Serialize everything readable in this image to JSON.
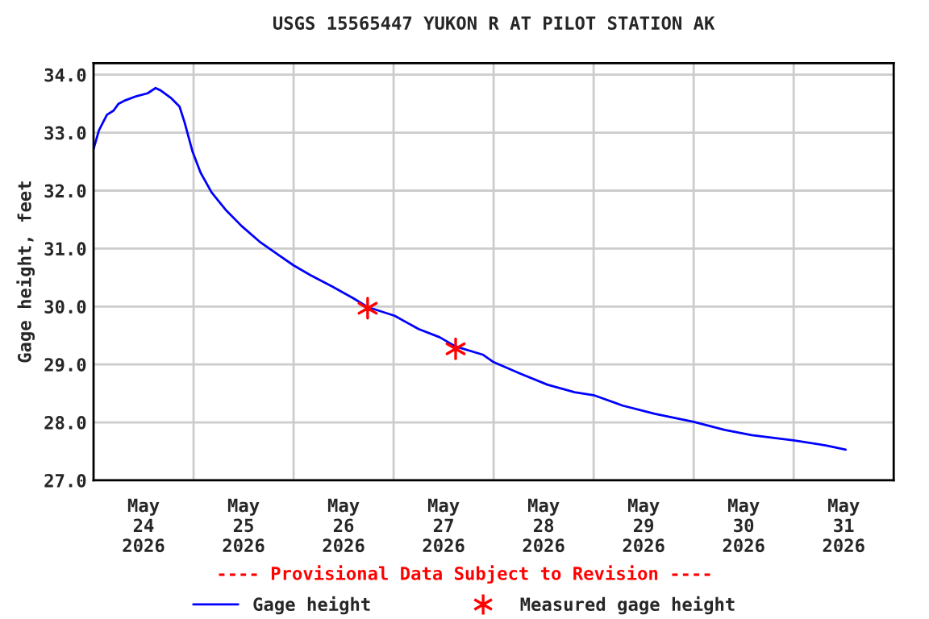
{
  "chart_data": {
    "type": "line",
    "title": "USGS 15565447 YUKON R AT PILOT STATION AK",
    "ylabel": "Gage height, feet",
    "annotations": [
      "---- Provisional Data Subject to Revision ----"
    ],
    "xlim": [
      "2026-05-24",
      "2026-06-01"
    ],
    "xticks": [
      {
        "value": "2026-05-24T12:00",
        "label": "May\n24\n2026"
      },
      {
        "value": "2026-05-25",
        "label": null
      },
      {
        "value": "2026-05-25T12:00",
        "label": "May\n25\n2026"
      },
      {
        "value": "2026-05-26",
        "label": null
      },
      {
        "value": "2026-05-26T12:00",
        "label": "May\n26\n2026"
      },
      {
        "value": "2026-05-27",
        "label": null
      },
      {
        "value": "2026-05-27T12:00",
        "label": "May\n27\n2026"
      },
      {
        "value": "2026-05-28",
        "label": null
      },
      {
        "value": "2026-05-28T12:00",
        "label": "May\n28\n2026"
      },
      {
        "value": "2026-05-29",
        "label": null
      },
      {
        "value": "2026-05-29T12:00",
        "label": "May\n29\n2026"
      },
      {
        "value": "2026-05-30",
        "label": null
      },
      {
        "value": "2026-05-30T12:00",
        "label": "May\n30\n2026"
      },
      {
        "value": "2026-05-31",
        "label": null
      },
      {
        "value": "2026-05-31T12:00",
        "label": "May\n31\n2026"
      }
    ],
    "ylim": [
      27,
      34.2
    ],
    "yticks": [
      {
        "value": 27,
        "label": "27.0"
      },
      {
        "value": 28,
        "label": "28.0"
      },
      {
        "value": 29,
        "label": "29.0"
      },
      {
        "value": 30,
        "label": "30.0"
      },
      {
        "value": 31,
        "label": "31.0"
      },
      {
        "value": 32,
        "label": "32.0"
      },
      {
        "value": 33,
        "label": "33.0"
      },
      {
        "value": 34,
        "label": "34.0"
      }
    ],
    "grid": true,
    "legend": "bottom",
    "series": [
      {
        "name": "Gage height",
        "color": "#0000ff",
        "marker": "none",
        "line_style": "solid",
        "x": [
          "2026-05-24T00:00",
          "2026-05-24T01:18",
          "2026-05-24T03:13",
          "2026-05-24T04:48",
          "2026-05-24T06:00",
          "2026-05-24T07:41",
          "2026-05-24T10:19",
          "2026-05-24T12:58",
          "2026-05-24T14:53",
          "2026-05-24T16:05",
          "2026-05-24T18:43",
          "2026-05-24T20:38",
          "2026-05-24T21:50",
          "2026-05-24T23:46",
          "2026-05-25T01:41",
          "2026-05-25T04:19",
          "2026-05-25T07:41",
          "2026-05-25T11:31",
          "2026-05-25T15:50",
          "2026-05-25T20:24",
          "2026-05-26T00:00",
          "2026-05-26T04:05",
          "2026-05-26T09:22",
          "2026-05-26T14:24",
          "2026-05-26T17:46",
          "2026-05-27T00:14",
          "2026-05-27T06:00",
          "2026-05-27T11:02",
          "2026-05-27T14:53",
          "2026-05-27T21:22",
          "2026-05-28T00:00",
          "2026-05-28T06:29",
          "2026-05-28T12:58",
          "2026-05-28T19:26",
          "2026-05-29T00:00",
          "2026-05-29T06:58",
          "2026-05-29T14:38",
          "2026-05-30T00:00",
          "2026-05-30T07:26",
          "2026-05-30T13:55",
          "2026-05-31T00:00",
          "2026-05-31T07:55",
          "2026-05-31T12:29"
        ],
        "values": [
          32.72,
          33.04,
          33.31,
          33.38,
          33.5,
          33.56,
          33.63,
          33.68,
          33.77,
          33.73,
          33.59,
          33.45,
          33.18,
          32.67,
          32.31,
          31.97,
          31.67,
          31.39,
          31.12,
          30.89,
          30.71,
          30.54,
          30.34,
          30.14,
          29.99,
          29.84,
          29.61,
          29.47,
          29.31,
          29.17,
          29.04,
          28.84,
          28.65,
          28.52,
          28.47,
          28.29,
          28.15,
          28.01,
          27.87,
          27.78,
          27.69,
          27.6,
          27.53
        ]
      },
      {
        "name": "Measured gage height",
        "type": "scatter",
        "color": "#ff0000",
        "marker": "cross",
        "x": [
          "2026-05-26T17:46",
          "2026-05-27T14:53"
        ],
        "values": [
          29.97,
          29.27
        ]
      }
    ]
  }
}
